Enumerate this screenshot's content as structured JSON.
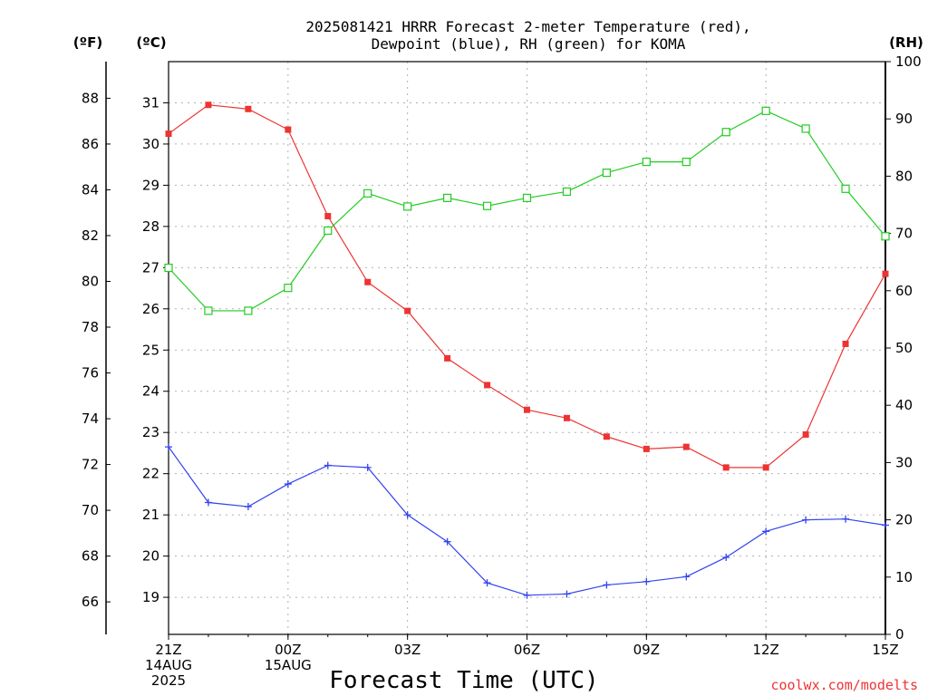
{
  "chart_data": {
    "type": "line",
    "title_line1": "2025081421 HRRR Forecast 2-meter Temperature (red),",
    "title_line2": "Dewpoint (blue), RH (green) for KOMA",
    "xlabel": "Forecast Time (UTC)",
    "credit": "coolwx.com/modelts",
    "unit_f": "(ºF)",
    "unit_c": "(ºC)",
    "unit_rh": "(RH)",
    "x_ticks": [
      {
        "hour": 0,
        "lines": [
          "21Z",
          "14AUG",
          "2025"
        ]
      },
      {
        "hour": 3,
        "lines": [
          "00Z",
          "15AUG"
        ]
      },
      {
        "hour": 6,
        "lines": [
          "03Z"
        ]
      },
      {
        "hour": 9,
        "lines": [
          "06Z"
        ]
      },
      {
        "hour": 12,
        "lines": [
          "09Z"
        ]
      },
      {
        "hour": 15,
        "lines": [
          "12Z"
        ]
      },
      {
        "hour": 18,
        "lines": [
          "15Z"
        ]
      }
    ],
    "x_range": [
      0,
      18
    ],
    "c_range": [
      18.1,
      32.0
    ],
    "c_ticks": [
      19,
      20,
      21,
      22,
      23,
      24,
      25,
      26,
      27,
      28,
      29,
      30,
      31
    ],
    "f_ticks": [
      66,
      68,
      70,
      72,
      74,
      76,
      78,
      80,
      82,
      84,
      86,
      88
    ],
    "rh_range": [
      0,
      100
    ],
    "rh_ticks": [
      0,
      10,
      20,
      30,
      40,
      50,
      60,
      70,
      80,
      90,
      100
    ],
    "grid": true,
    "series": [
      {
        "name": "Temperature",
        "unit": "C",
        "color": "#ee3333",
        "marker": "filled-square",
        "values": [
          30.25,
          30.95,
          30.85,
          30.35,
          28.25,
          26.65,
          25.95,
          24.8,
          24.15,
          23.55,
          23.35,
          22.9,
          22.6,
          22.65,
          22.15,
          22.15,
          22.95,
          25.15,
          26.85
        ]
      },
      {
        "name": "Dewpoint",
        "unit": "C",
        "color": "#3344ee",
        "marker": "plus",
        "values": [
          22.65,
          21.3,
          21.2,
          21.75,
          22.2,
          22.15,
          21.0,
          20.35,
          19.35,
          19.05,
          19.08,
          19.3,
          19.38,
          19.5,
          19.97,
          20.6,
          20.88,
          20.9,
          20.75
        ]
      },
      {
        "name": "RH",
        "unit": "%",
        "color": "#22cc22",
        "marker": "open-square",
        "values": [
          64,
          56.5,
          56.5,
          60.5,
          70.5,
          77,
          74.7,
          76.2,
          74.8,
          76.2,
          77.3,
          80.6,
          82.5,
          82.5,
          87.7,
          91.4,
          88.3,
          77.8,
          69.5
        ]
      }
    ]
  }
}
